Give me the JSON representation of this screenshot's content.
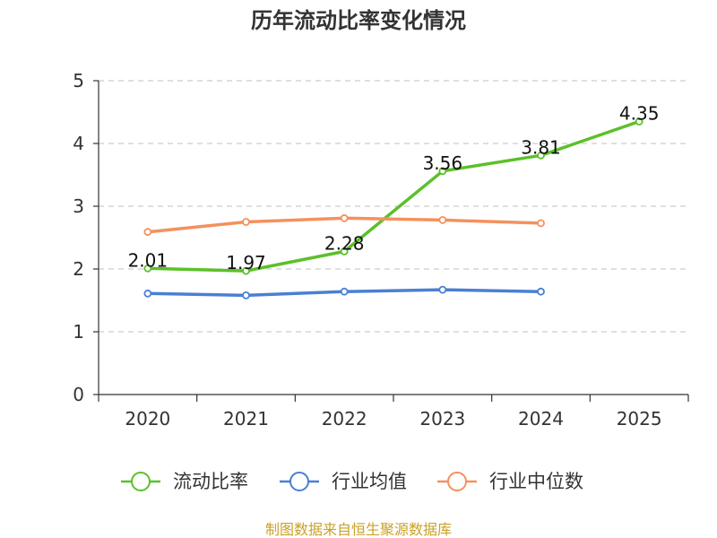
{
  "chart_data": {
    "type": "line",
    "title": "历年流动比率变化情况",
    "categories": [
      "2020",
      "2021",
      "2022",
      "2023",
      "2024",
      "2025"
    ],
    "ylim": [
      0,
      5
    ],
    "yticks": [
      0,
      1,
      2,
      3,
      4,
      5
    ],
    "grid": true,
    "legend_position": "bottom",
    "series": [
      {
        "name": "流动比率",
        "color": "#5bc02a",
        "values": [
          2.01,
          1.97,
          2.28,
          3.56,
          3.81,
          4.35
        ],
        "labels": [
          "2.01",
          "1.97",
          "2.28",
          "3.56",
          "3.81",
          "4.35"
        ],
        "show_labels": true
      },
      {
        "name": "行业均值",
        "color": "#4a7fd4",
        "values": [
          1.61,
          1.58,
          1.64,
          1.67,
          1.64,
          null
        ],
        "show_labels": false
      },
      {
        "name": "行业中位数",
        "color": "#f4915d",
        "values": [
          2.59,
          2.75,
          2.81,
          2.78,
          2.73,
          null
        ],
        "show_labels": false
      }
    ],
    "source": "制图数据来自恒生聚源数据库"
  }
}
